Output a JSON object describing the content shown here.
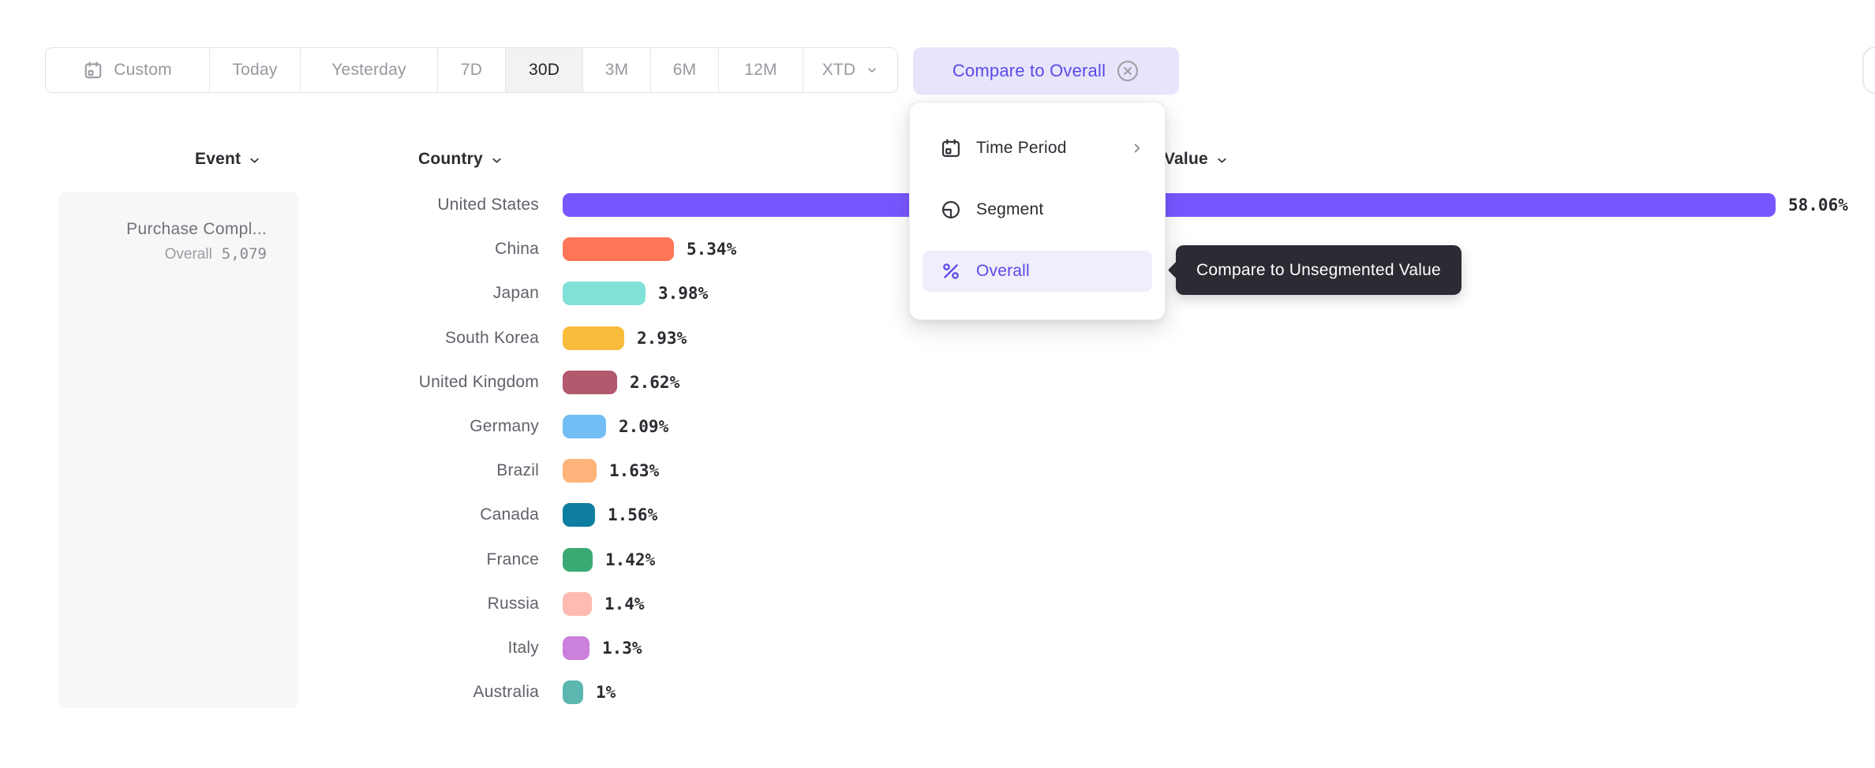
{
  "toolbar": {
    "buttons": [
      {
        "label": "Custom",
        "leading_icon": "calendar-icon",
        "selected": false
      },
      {
        "label": "Today",
        "selected": false
      },
      {
        "label": "Yesterday",
        "selected": false
      },
      {
        "label": "7D",
        "selected": false
      },
      {
        "label": "30D",
        "selected": true
      },
      {
        "label": "3M",
        "selected": false
      },
      {
        "label": "6M",
        "selected": false
      },
      {
        "label": "12M",
        "selected": false
      },
      {
        "label": "XTD",
        "trailing_icon": "chevron-down-icon",
        "selected": false
      }
    ],
    "compare_chip": {
      "label": "Compare to Overall",
      "icon": "x-circle-icon"
    }
  },
  "compare_menu": {
    "items": [
      {
        "label": "Time Period",
        "icon": "calendar-icon",
        "has_submenu": true,
        "active": false
      },
      {
        "label": "Segment",
        "icon": "segment-icon",
        "has_submenu": false,
        "active": false
      },
      {
        "label": "Overall",
        "icon": "percent-icon",
        "has_submenu": false,
        "active": true
      }
    ]
  },
  "tooltip": {
    "text": "Compare to Unsegmented Value"
  },
  "headers": {
    "event": "Event",
    "country": "Country",
    "value": "Value"
  },
  "event_panel": {
    "event_name": "Purchase Compl...",
    "overall_label": "Overall",
    "overall_value": "5,079"
  },
  "chart_data": {
    "type": "bar",
    "orientation": "horizontal",
    "group_by": "Country",
    "categories": [
      "United States",
      "China",
      "Japan",
      "South Korea",
      "United Kingdom",
      "Germany",
      "Brazil",
      "Canada",
      "France",
      "Russia",
      "Italy",
      "Australia"
    ],
    "values": [
      58.06,
      5.34,
      3.98,
      2.93,
      2.62,
      2.09,
      1.63,
      1.56,
      1.42,
      1.4,
      1.3,
      1
    ],
    "value_labels": [
      "58.06%",
      "5.34%",
      "3.98%",
      "2.93%",
      "2.62%",
      "2.09%",
      "1.63%",
      "1.56%",
      "1.42%",
      "1.4%",
      "1.3%",
      "1%"
    ],
    "colors": [
      "#7856FF",
      "#FF7557",
      "#80E1D9",
      "#F8BC3B",
      "#B2596E",
      "#72BEF4",
      "#FFB27A",
      "#0D7EA0",
      "#3BA974",
      "#FEBBB2",
      "#CA80DC",
      "#5BB7AF"
    ],
    "max_value": 58.06,
    "legend": "none",
    "grid": false
  },
  "colors": {
    "accent_purple": "#5A4AE6",
    "bar_purple": "#7856FF",
    "chip_bg": "#E7E4FB",
    "menu_active_bg": "#F0EDFC",
    "tooltip_bg": "#2B2B33",
    "selected_range_bg": "#F2F2F3"
  }
}
